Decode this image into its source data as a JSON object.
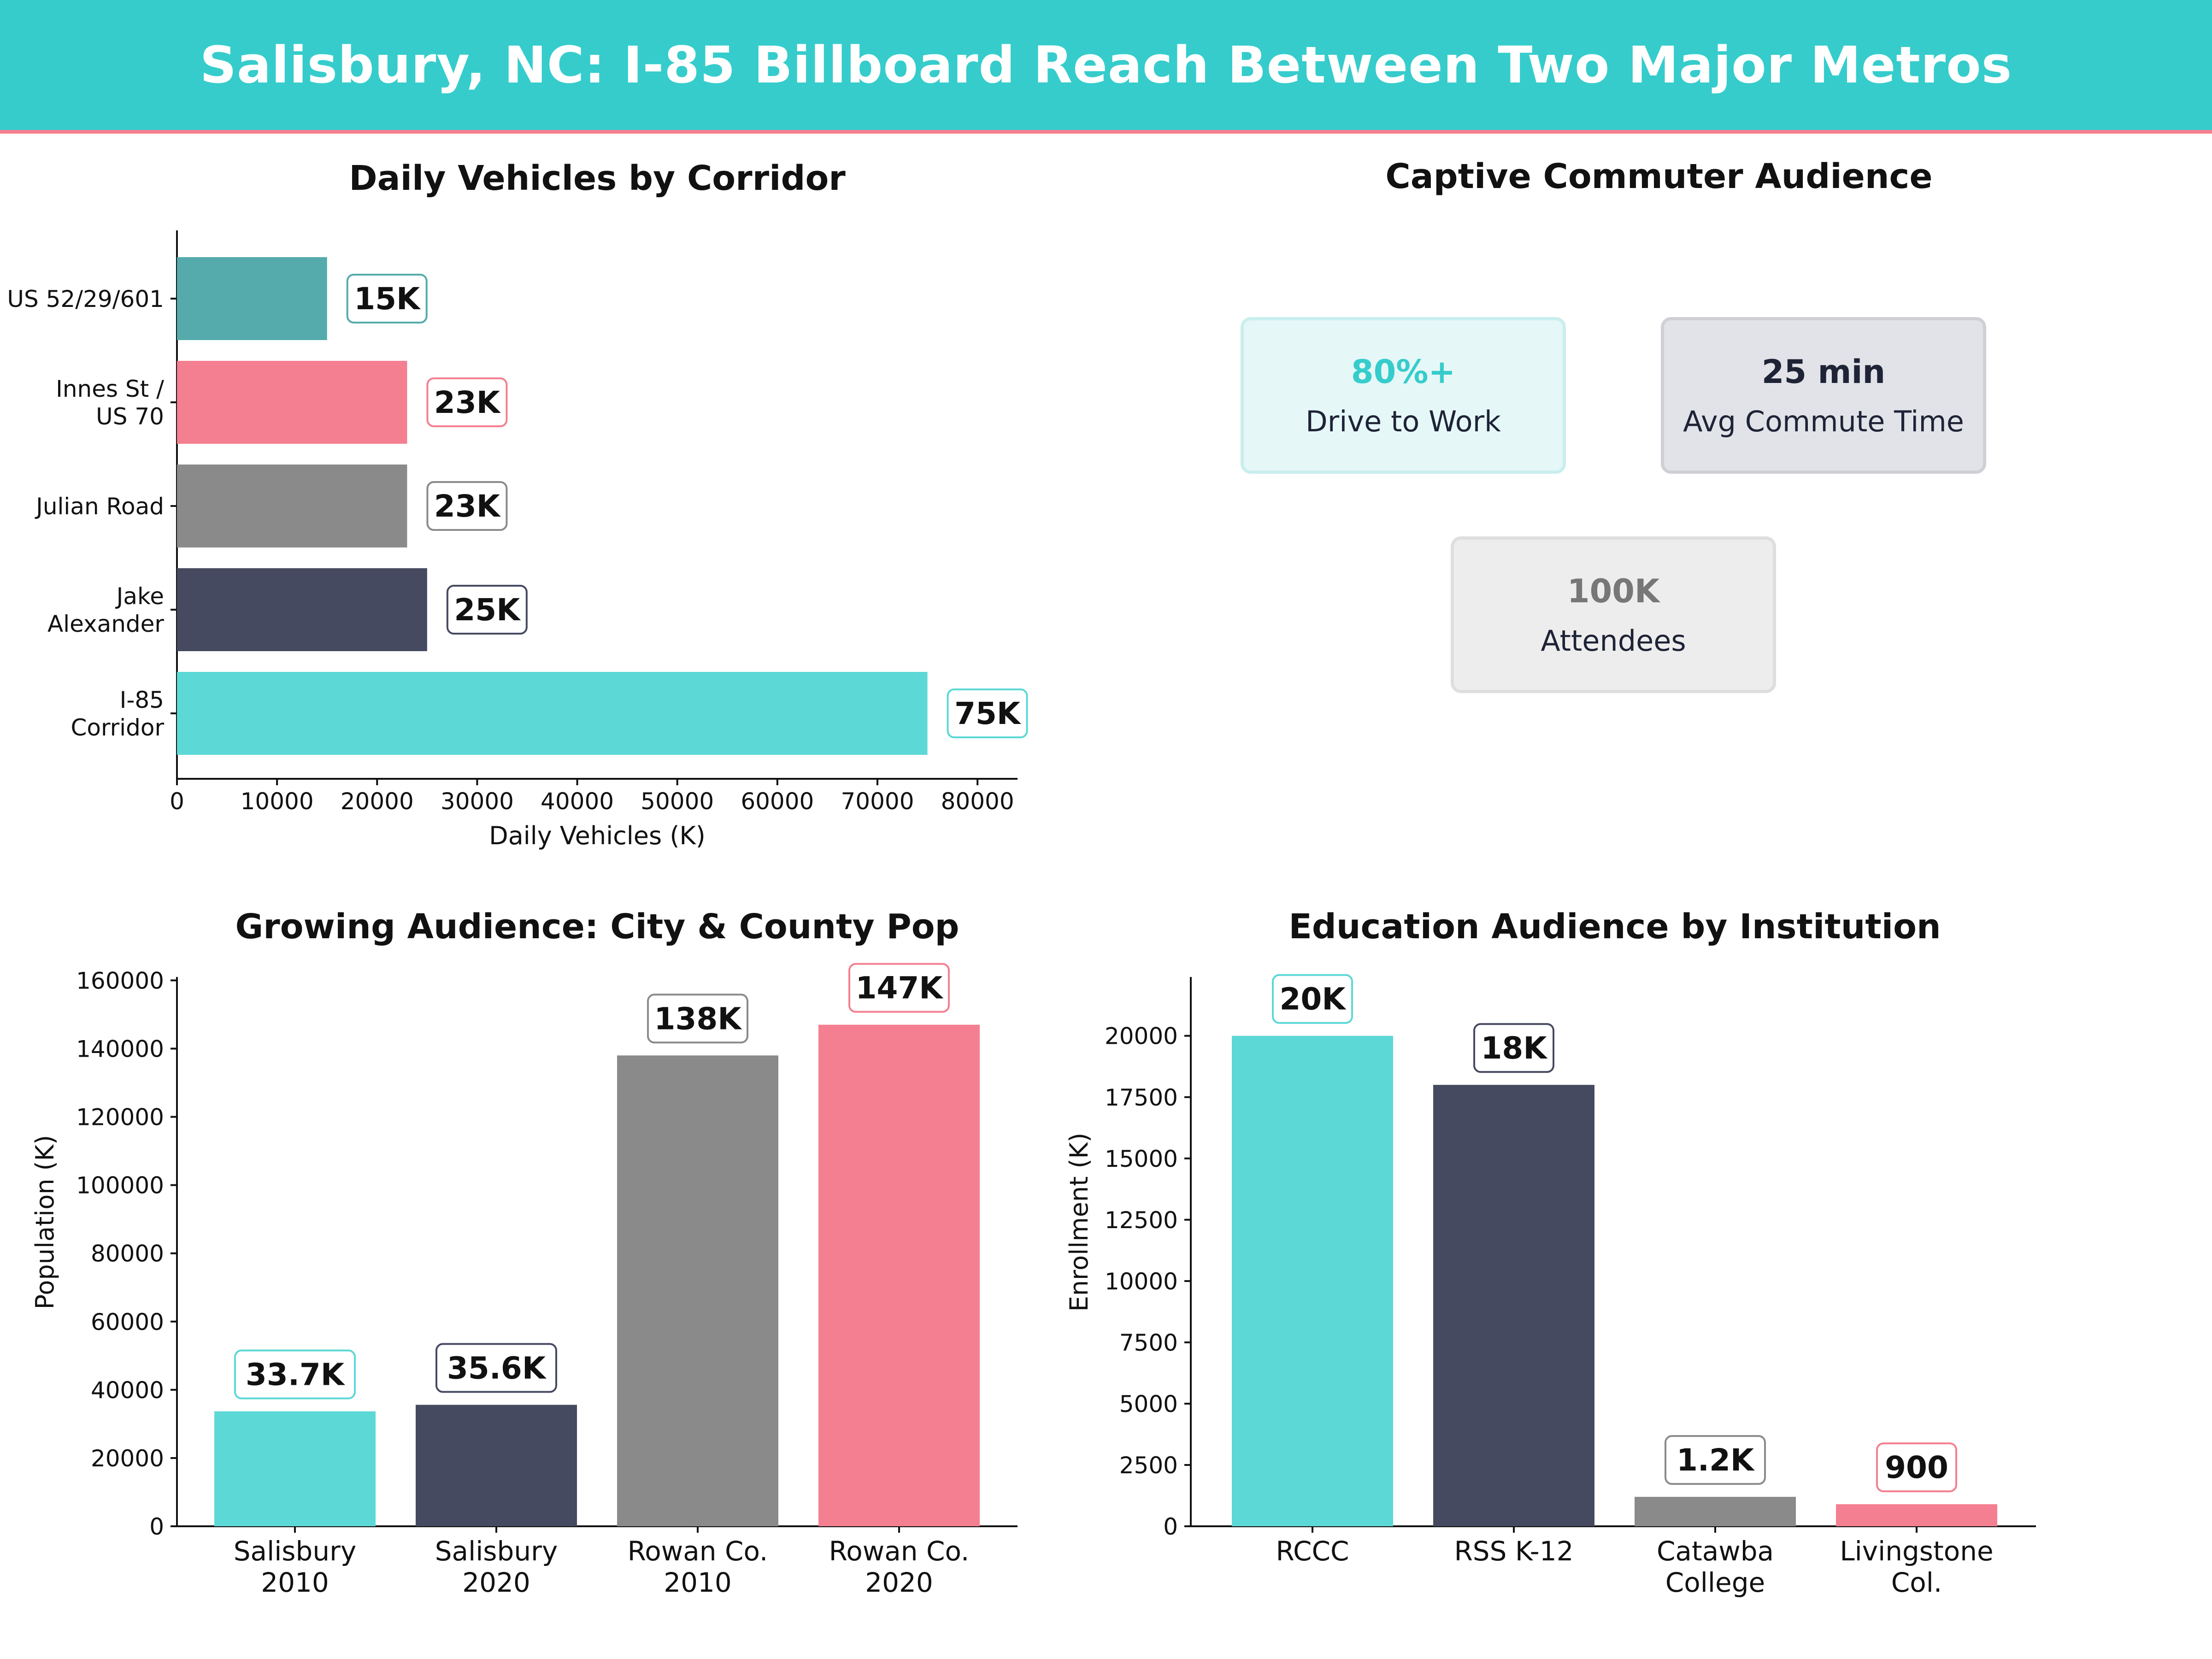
{
  "title": "Salisbury, NC: I-85 Billboard Reach Between Two Major Metros",
  "colors": {
    "teal": "#36cccc",
    "teal_dark": "#55abab",
    "bar_teal": "#5cd8d6",
    "pink": "#f47f90",
    "grey": "#8a8a8a",
    "navy": "#464a60"
  },
  "panel_vehicles": {
    "title": "Daily Vehicles by Corridor",
    "xlabel": "Daily Vehicles (K)"
  },
  "panel_commute": {
    "title": "Captive Commuter Audience",
    "cards": [
      {
        "value": "80%+",
        "label": "Drive to Work"
      },
      {
        "value": "25 min",
        "label": "Avg Commute Time"
      },
      {
        "value": "100K",
        "label": "Attendees"
      }
    ]
  },
  "panel_population": {
    "title": "Growing Audience: City & County Pop",
    "ylabel": "Population (K)"
  },
  "panel_education": {
    "title": "Education Audience by Institution",
    "ylabel": "Enrollment (K)"
  },
  "chart_data": [
    {
      "type": "bar",
      "orientation": "horizontal",
      "title": "Daily Vehicles by Corridor",
      "xlabel": "Daily Vehicles (K)",
      "ylabel": "",
      "categories": [
        [
          "US 52/29/601"
        ],
        [
          "Innes St /",
          "US 70"
        ],
        [
          "Julian Road"
        ],
        [
          "Jake",
          "Alexander"
        ],
        [
          "I-85",
          "Corridor"
        ]
      ],
      "values": [
        15000,
        23000,
        23000,
        25000,
        75000
      ],
      "labels": [
        "15K",
        "23K",
        "23K",
        "25K",
        "75K"
      ],
      "colors": [
        "#55abab",
        "#f47f90",
        "#8a8a8a",
        "#464a60",
        "#5cd8d6"
      ],
      "xlim": [
        0,
        84000
      ],
      "xticks": [
        0,
        10000,
        20000,
        30000,
        40000,
        50000,
        60000,
        70000,
        80000
      ],
      "grid": false
    },
    {
      "type": "bar",
      "title": "Growing Audience: City & County Pop",
      "xlabel": "",
      "ylabel": "Population (K)",
      "categories": [
        [
          "Salisbury",
          "2010"
        ],
        [
          "Salisbury",
          "2020"
        ],
        [
          "Rowan Co.",
          "2010"
        ],
        [
          "Rowan Co.",
          "2020"
        ]
      ],
      "values": [
        33700,
        35600,
        138000,
        147000
      ],
      "labels": [
        "33.7K",
        "35.6K",
        "138K",
        "147K"
      ],
      "colors": [
        "#5cd8d6",
        "#464a60",
        "#8a8a8a",
        "#f47f90"
      ],
      "ylim": [
        0,
        161000
      ],
      "yticks": [
        0,
        20000,
        40000,
        60000,
        80000,
        100000,
        120000,
        140000,
        160000
      ],
      "grid": false
    },
    {
      "type": "bar",
      "title": "Education Audience by Institution",
      "xlabel": "",
      "ylabel": "Enrollment (K)",
      "categories": [
        [
          "RCCC"
        ],
        [
          "RSS K-12"
        ],
        [
          "Catawba",
          "College"
        ],
        [
          "Livingstone",
          "Col."
        ]
      ],
      "values": [
        20000,
        18000,
        1200,
        900
      ],
      "labels": [
        "20K",
        "18K",
        "1.2K",
        "900"
      ],
      "colors": [
        "#5cd8d6",
        "#464a60",
        "#8a8a8a",
        "#f47f90"
      ],
      "ylim": [
        0,
        22400
      ],
      "yticks": [
        0,
        2500,
        5000,
        7500,
        10000,
        12500,
        15000,
        17500,
        20000
      ],
      "grid": false
    }
  ]
}
